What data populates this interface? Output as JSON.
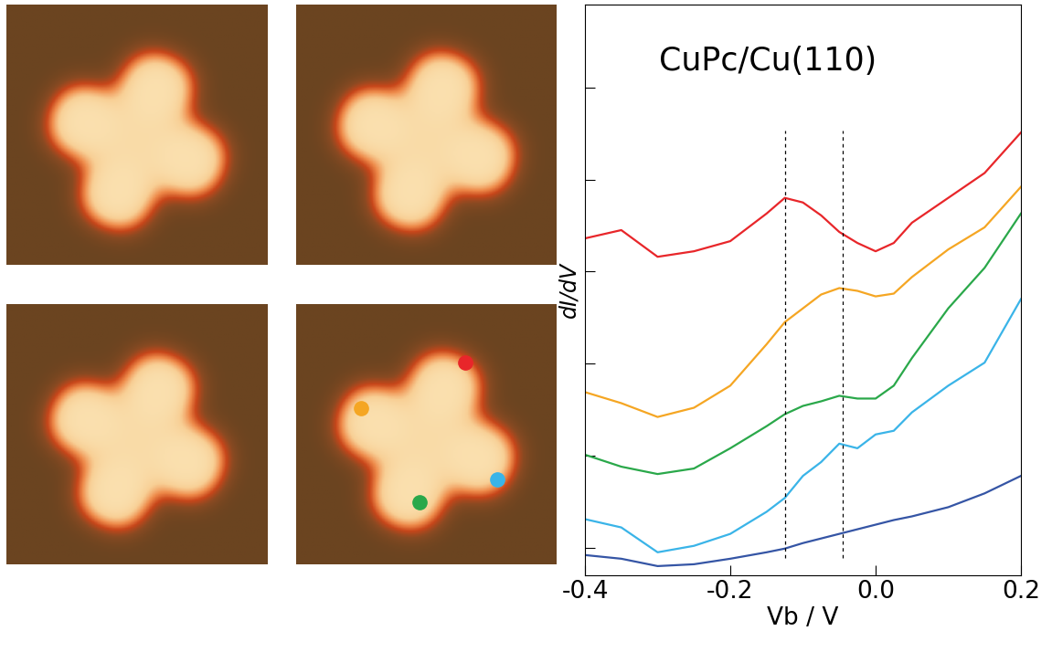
{
  "chart_data": {
    "type": "line",
    "annotations": [
      "CuPc/Cu(110)"
    ],
    "x_label": "Vb / V",
    "y_label": "dI/dV",
    "x": [
      -0.4,
      -0.35,
      -0.3,
      -0.25,
      -0.2,
      -0.15,
      -0.125,
      -0.1,
      -0.075,
      -0.05,
      -0.025,
      0.0,
      0.025,
      0.05,
      0.1,
      0.15,
      0.2
    ],
    "series": [
      {
        "color": "#e8262a",
        "values": [
          3.36,
          3.45,
          3.16,
          3.22,
          3.33,
          3.63,
          3.8,
          3.75,
          3.61,
          3.43,
          3.31,
          3.22,
          3.31,
          3.53,
          3.8,
          4.07,
          4.51
        ]
      },
      {
        "color": "#f5a623",
        "values": [
          1.69,
          1.57,
          1.42,
          1.52,
          1.76,
          2.21,
          2.45,
          2.6,
          2.75,
          2.82,
          2.79,
          2.73,
          2.76,
          2.94,
          3.24,
          3.48,
          3.92
        ]
      },
      {
        "color": "#2aa84a",
        "values": [
          1.01,
          0.88,
          0.8,
          0.86,
          1.08,
          1.32,
          1.45,
          1.54,
          1.59,
          1.65,
          1.62,
          1.62,
          1.76,
          2.06,
          2.6,
          3.04,
          3.63
        ]
      },
      {
        "color": "#3ab4e8",
        "values": [
          0.31,
          0.22,
          -0.05,
          0.02,
          0.15,
          0.39,
          0.54,
          0.78,
          0.93,
          1.13,
          1.08,
          1.23,
          1.27,
          1.47,
          1.76,
          2.01,
          2.7
        ]
      },
      {
        "color": "#3555a5",
        "values": [
          -0.08,
          -0.12,
          -0.2,
          -0.18,
          -0.12,
          -0.05,
          -0.01,
          0.05,
          0.1,
          0.15,
          0.2,
          0.25,
          0.3,
          0.34,
          0.44,
          0.59,
          0.78
        ]
      }
    ],
    "reference_lines": [
      -0.125,
      -0.045
    ],
    "xlim": [
      -0.4,
      0.2
    ],
    "xticks": [
      -0.4,
      -0.2,
      0.0,
      0.2
    ],
    "ylim": [
      -0.3,
      5.9
    ],
    "yticks": [
      0,
      1,
      2,
      3,
      4,
      5
    ],
    "tick_labels": "x",
    "line_style": "solid",
    "grid": false
  }
}
